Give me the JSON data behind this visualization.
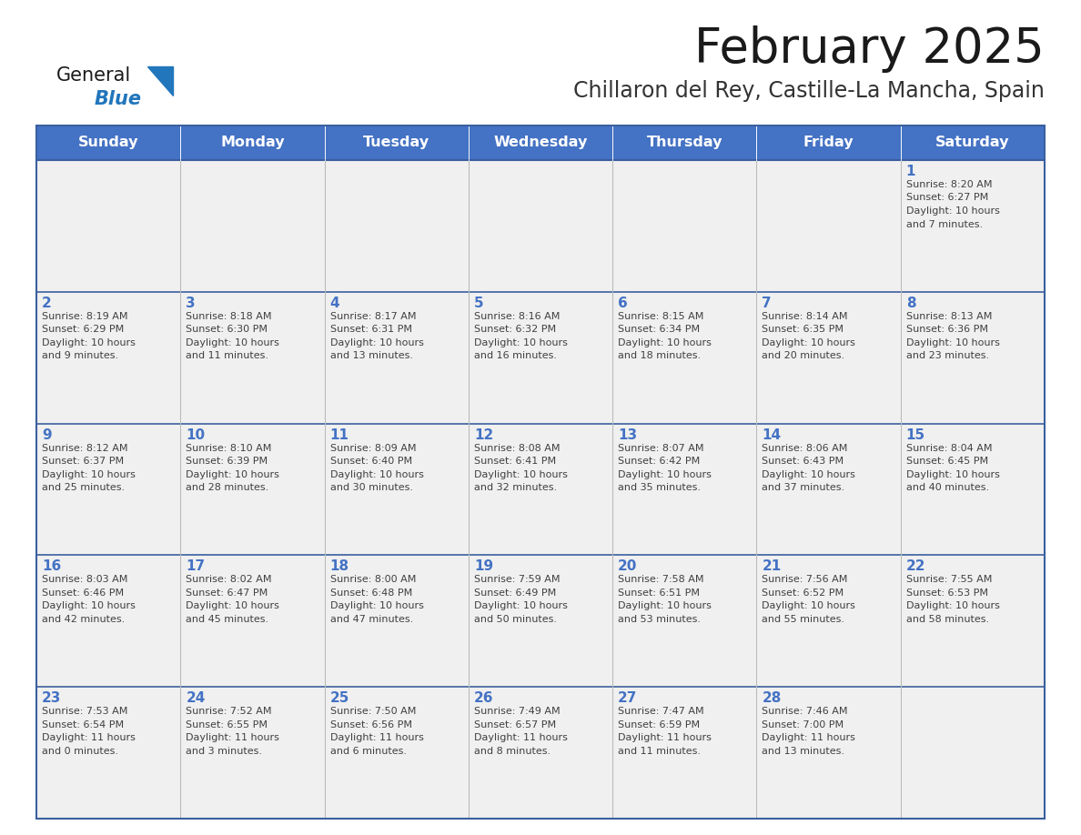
{
  "title": "February 2025",
  "subtitle": "Chillaron del Rey, Castille-La Mancha, Spain",
  "days_of_week": [
    "Sunday",
    "Monday",
    "Tuesday",
    "Wednesday",
    "Thursday",
    "Friday",
    "Saturday"
  ],
  "header_bg": "#4472C4",
  "header_text": "#FFFFFF",
  "cell_bg": "#F0F0F0",
  "cell_border_color": "#3A5F9F",
  "row_divider_color": "#3A5F9F",
  "col_divider_color": "#CCCCCC",
  "day_num_color": "#4472C4",
  "text_color": "#404040",
  "title_color": "#1a1a1a",
  "subtitle_color": "#333333",
  "logo_general_color": "#1a1a1a",
  "logo_blue_color": "#2176BC",
  "logo_triangle_color": "#2176BC",
  "calendar_data": [
    [
      null,
      null,
      null,
      null,
      null,
      null,
      {
        "day": 1,
        "sunrise": "8:20 AM",
        "sunset": "6:27 PM",
        "daylight_hours": 10,
        "daylight_minutes": 7
      }
    ],
    [
      {
        "day": 2,
        "sunrise": "8:19 AM",
        "sunset": "6:29 PM",
        "daylight_hours": 10,
        "daylight_minutes": 9
      },
      {
        "day": 3,
        "sunrise": "8:18 AM",
        "sunset": "6:30 PM",
        "daylight_hours": 10,
        "daylight_minutes": 11
      },
      {
        "day": 4,
        "sunrise": "8:17 AM",
        "sunset": "6:31 PM",
        "daylight_hours": 10,
        "daylight_minutes": 13
      },
      {
        "day": 5,
        "sunrise": "8:16 AM",
        "sunset": "6:32 PM",
        "daylight_hours": 10,
        "daylight_minutes": 16
      },
      {
        "day": 6,
        "sunrise": "8:15 AM",
        "sunset": "6:34 PM",
        "daylight_hours": 10,
        "daylight_minutes": 18
      },
      {
        "day": 7,
        "sunrise": "8:14 AM",
        "sunset": "6:35 PM",
        "daylight_hours": 10,
        "daylight_minutes": 20
      },
      {
        "day": 8,
        "sunrise": "8:13 AM",
        "sunset": "6:36 PM",
        "daylight_hours": 10,
        "daylight_minutes": 23
      }
    ],
    [
      {
        "day": 9,
        "sunrise": "8:12 AM",
        "sunset": "6:37 PM",
        "daylight_hours": 10,
        "daylight_minutes": 25
      },
      {
        "day": 10,
        "sunrise": "8:10 AM",
        "sunset": "6:39 PM",
        "daylight_hours": 10,
        "daylight_minutes": 28
      },
      {
        "day": 11,
        "sunrise": "8:09 AM",
        "sunset": "6:40 PM",
        "daylight_hours": 10,
        "daylight_minutes": 30
      },
      {
        "day": 12,
        "sunrise": "8:08 AM",
        "sunset": "6:41 PM",
        "daylight_hours": 10,
        "daylight_minutes": 32
      },
      {
        "day": 13,
        "sunrise": "8:07 AM",
        "sunset": "6:42 PM",
        "daylight_hours": 10,
        "daylight_minutes": 35
      },
      {
        "day": 14,
        "sunrise": "8:06 AM",
        "sunset": "6:43 PM",
        "daylight_hours": 10,
        "daylight_minutes": 37
      },
      {
        "day": 15,
        "sunrise": "8:04 AM",
        "sunset": "6:45 PM",
        "daylight_hours": 10,
        "daylight_minutes": 40
      }
    ],
    [
      {
        "day": 16,
        "sunrise": "8:03 AM",
        "sunset": "6:46 PM",
        "daylight_hours": 10,
        "daylight_minutes": 42
      },
      {
        "day": 17,
        "sunrise": "8:02 AM",
        "sunset": "6:47 PM",
        "daylight_hours": 10,
        "daylight_minutes": 45
      },
      {
        "day": 18,
        "sunrise": "8:00 AM",
        "sunset": "6:48 PM",
        "daylight_hours": 10,
        "daylight_minutes": 47
      },
      {
        "day": 19,
        "sunrise": "7:59 AM",
        "sunset": "6:49 PM",
        "daylight_hours": 10,
        "daylight_minutes": 50
      },
      {
        "day": 20,
        "sunrise": "7:58 AM",
        "sunset": "6:51 PM",
        "daylight_hours": 10,
        "daylight_minutes": 53
      },
      {
        "day": 21,
        "sunrise": "7:56 AM",
        "sunset": "6:52 PM",
        "daylight_hours": 10,
        "daylight_minutes": 55
      },
      {
        "day": 22,
        "sunrise": "7:55 AM",
        "sunset": "6:53 PM",
        "daylight_hours": 10,
        "daylight_minutes": 58
      }
    ],
    [
      {
        "day": 23,
        "sunrise": "7:53 AM",
        "sunset": "6:54 PM",
        "daylight_hours": 11,
        "daylight_minutes": 0
      },
      {
        "day": 24,
        "sunrise": "7:52 AM",
        "sunset": "6:55 PM",
        "daylight_hours": 11,
        "daylight_minutes": 3
      },
      {
        "day": 25,
        "sunrise": "7:50 AM",
        "sunset": "6:56 PM",
        "daylight_hours": 11,
        "daylight_minutes": 6
      },
      {
        "day": 26,
        "sunrise": "7:49 AM",
        "sunset": "6:57 PM",
        "daylight_hours": 11,
        "daylight_minutes": 8
      },
      {
        "day": 27,
        "sunrise": "7:47 AM",
        "sunset": "6:59 PM",
        "daylight_hours": 11,
        "daylight_minutes": 11
      },
      {
        "day": 28,
        "sunrise": "7:46 AM",
        "sunset": "7:00 PM",
        "daylight_hours": 11,
        "daylight_minutes": 13
      },
      null
    ]
  ]
}
